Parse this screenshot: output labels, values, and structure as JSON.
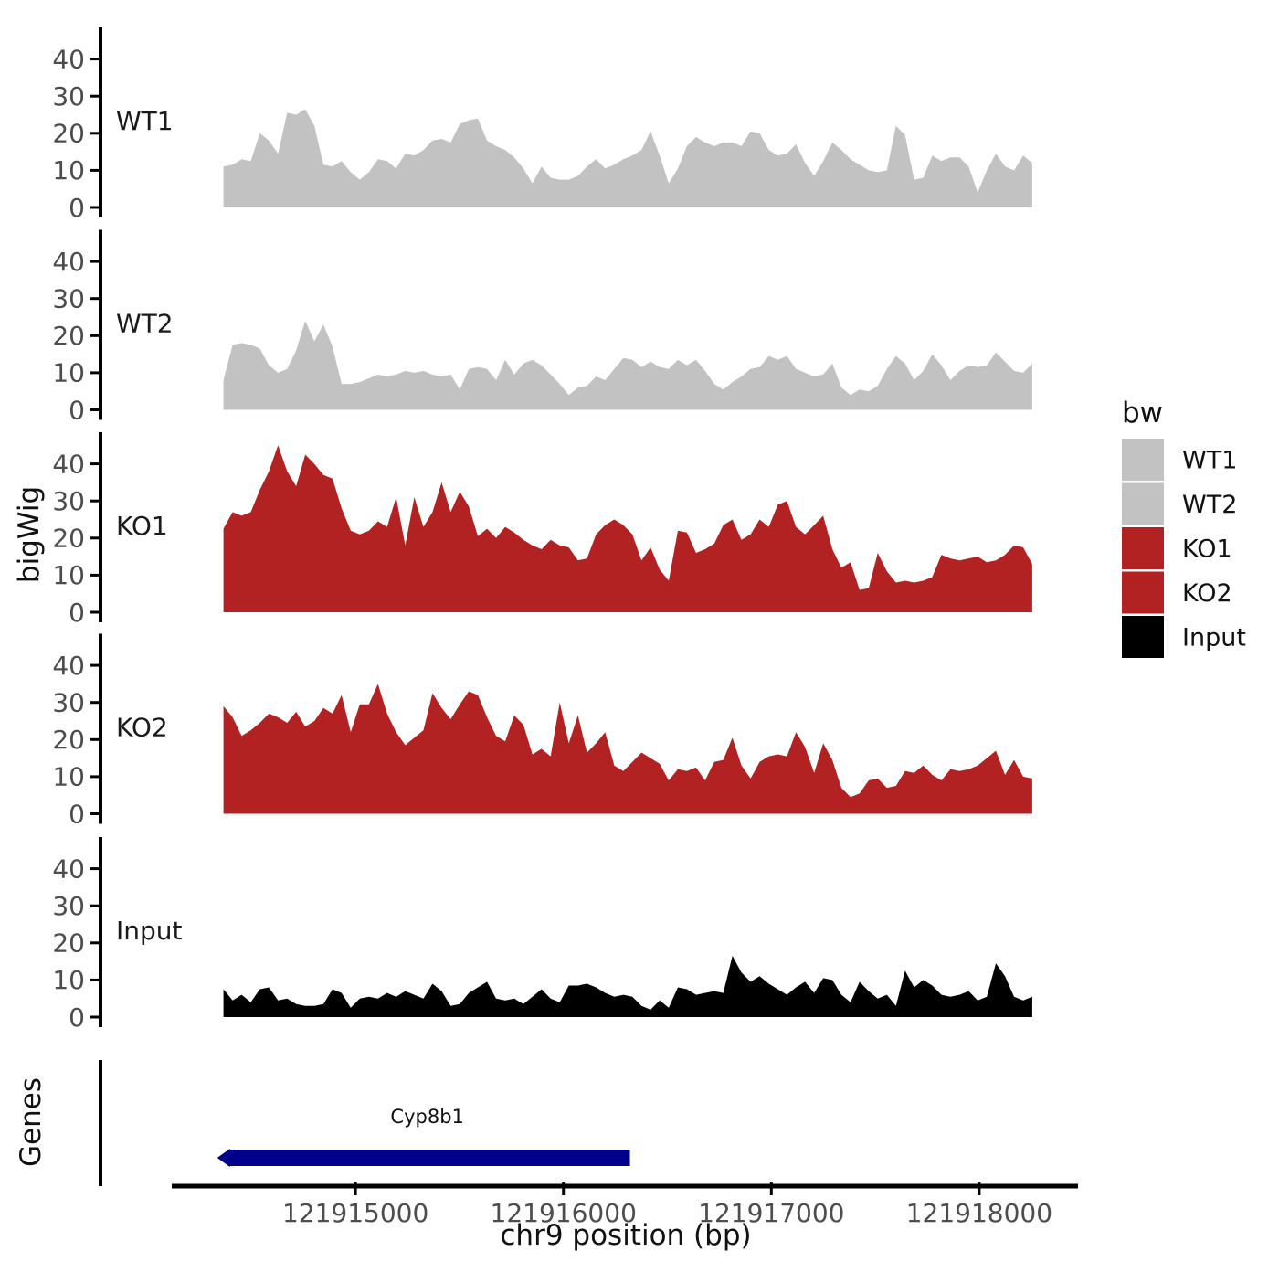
{
  "figure": {
    "y_axis_title": "bigWig",
    "genes_axis_title": "Genes",
    "x_axis_title": "chr9 position (bp)",
    "colors": {
      "wt_gray": "#C2C2C2",
      "ko_red": "#B22222",
      "input_black": "#000000",
      "gene_navy": "#00008B",
      "axis_line": "#000000",
      "tick_text": "#4d4d4d"
    },
    "legend": {
      "title": "bw",
      "items": [
        {
          "label": "WT1",
          "color": "#C2C2C2"
        },
        {
          "label": "WT2",
          "color": "#C2C2C2"
        },
        {
          "label": "KO1",
          "color": "#B22222"
        },
        {
          "label": "KO2",
          "color": "#B22222"
        },
        {
          "label": "Input",
          "color": "#000000"
        }
      ]
    }
  },
  "chart_data": {
    "type": "area",
    "title": "",
    "xlabel": "chr9 position (bp)",
    "ylabel": "bigWig",
    "grid": false,
    "legend_position": "right",
    "x_range": [
      121914125,
      121918475
    ],
    "x_ticks": [
      121915000,
      121916000,
      121917000,
      121918000
    ],
    "y_ticks": [
      0,
      10,
      20,
      30,
      40
    ],
    "ylim": [
      0,
      46
    ],
    "data_x_start": 121914365,
    "data_x_end": 121918255,
    "series": [
      {
        "name": "WT1",
        "color": "#C2C2C2",
        "values": [
          11,
          11.5,
          13,
          12.5,
          20,
          18,
          14.5,
          25.5,
          25,
          26.5,
          22,
          11.5,
          11,
          12.5,
          9.5,
          7.5,
          9.5,
          13,
          12.5,
          10.5,
          14.5,
          14,
          15.5,
          18,
          18.5,
          17.5,
          22.5,
          23.5,
          24,
          18,
          16.5,
          15.5,
          13.5,
          10.5,
          6.5,
          11,
          8,
          7.5,
          7.5,
          8.5,
          11,
          13,
          10.5,
          11.5,
          13,
          14,
          15.5,
          20.5,
          14,
          6.5,
          10.5,
          16.5,
          19,
          17.5,
          16.5,
          17.5,
          17.5,
          16.5,
          20.5,
          20,
          15.5,
          14,
          14.5,
          17,
          12,
          8.5,
          12.5,
          17.5,
          15.5,
          13,
          11.5,
          10,
          9.5,
          10,
          22,
          19.5,
          7.5,
          8,
          14,
          12.5,
          13.5,
          13.5,
          11,
          4,
          10,
          14.5,
          11,
          10,
          14,
          12
        ]
      },
      {
        "name": "WT2",
        "color": "#C2C2C2",
        "values": [
          8,
          17.5,
          18,
          17.5,
          16.5,
          12,
          10,
          11,
          16,
          24,
          18.5,
          23,
          17,
          7,
          7,
          7.5,
          8.5,
          9.5,
          9,
          9.5,
          10.5,
          10,
          10.5,
          9.5,
          9,
          9.5,
          5.5,
          11,
          11.5,
          11,
          8,
          13.5,
          9.5,
          12.5,
          13.5,
          12,
          9.5,
          7,
          4,
          6,
          6.5,
          9,
          8,
          11,
          14,
          13.5,
          11.5,
          13,
          11.5,
          11,
          13.5,
          12,
          13.5,
          10.5,
          7,
          5.5,
          7.5,
          9,
          11,
          11.5,
          14.5,
          13.5,
          14.5,
          11,
          10,
          9,
          9.5,
          12.5,
          6,
          4,
          5.5,
          5,
          6.5,
          11,
          14.5,
          12.5,
          8,
          10.5,
          15,
          12,
          8,
          10.5,
          12,
          11.5,
          12,
          15.5,
          13,
          10.5,
          10,
          12.5
        ]
      },
      {
        "name": "KO1",
        "color": "#B22222",
        "values": [
          22.5,
          27,
          26,
          27,
          33,
          38,
          45,
          38,
          34,
          42.5,
          40,
          37,
          36,
          28,
          22,
          21,
          22,
          24.5,
          23,
          31,
          18,
          31,
          23,
          27,
          35,
          27,
          32.5,
          28.5,
          20.5,
          22.5,
          20,
          23,
          21.5,
          19.5,
          18,
          17,
          19.5,
          18,
          17.5,
          14,
          14.5,
          21,
          23.5,
          25,
          23.5,
          21,
          14,
          17.5,
          11.5,
          8.5,
          22,
          21.5,
          16,
          17,
          18.5,
          23.5,
          25,
          19.5,
          21,
          25,
          23,
          29,
          30,
          23,
          21,
          23.5,
          26,
          17,
          12,
          13.5,
          6,
          6.5,
          16,
          11,
          8,
          8.5,
          8,
          8.5,
          9.5,
          15.5,
          14.5,
          14,
          14.5,
          15,
          13.5,
          14,
          15.5,
          18,
          17.5,
          13
        ]
      },
      {
        "name": "KO2",
        "color": "#B22222",
        "values": [
          29,
          26,
          21,
          22.5,
          24.5,
          27,
          26,
          24.5,
          27.5,
          23.5,
          25,
          28.5,
          27,
          32,
          22,
          29.5,
          29.5,
          35,
          27,
          22,
          18.5,
          20.5,
          22.5,
          32.5,
          28.5,
          25.5,
          29.5,
          33,
          32,
          26,
          21,
          19.5,
          26.5,
          24,
          16,
          17.5,
          15.5,
          30,
          19,
          26.5,
          16.5,
          19,
          22,
          13,
          11.5,
          14,
          16.5,
          15,
          13.5,
          9,
          12,
          11.5,
          12.5,
          9,
          14,
          14.5,
          20.5,
          13,
          9.5,
          14,
          15.5,
          16,
          15.5,
          22,
          18,
          11,
          19,
          14.5,
          7,
          4.5,
          5.5,
          9,
          9.5,
          7,
          7.5,
          11.5,
          11,
          13,
          10.5,
          9,
          12,
          11.5,
          12,
          13,
          15,
          17,
          10.5,
          14.5,
          10,
          9.5
        ]
      },
      {
        "name": "Input",
        "color": "#000000",
        "values": [
          7.5,
          4.5,
          6,
          4,
          7.5,
          8,
          4.5,
          5,
          3.5,
          3,
          3,
          3.5,
          7.5,
          6.5,
          2.5,
          5,
          5.5,
          5,
          6.5,
          5.5,
          7,
          6,
          5,
          9,
          7,
          3,
          3.5,
          6.5,
          8,
          9.5,
          5,
          4.5,
          5,
          3.5,
          5.5,
          7.5,
          5,
          4,
          8.5,
          8.5,
          9,
          8,
          6.5,
          5.5,
          6,
          5.5,
          3,
          2,
          4.5,
          2.5,
          8,
          7.5,
          6,
          6.5,
          7,
          6.5,
          16.5,
          12,
          9.5,
          11,
          9,
          7.5,
          6,
          8,
          9.5,
          6.5,
          10.5,
          10,
          6,
          4,
          9.5,
          7,
          5,
          6,
          3,
          12.5,
          8,
          10,
          8.5,
          6,
          5.5,
          6,
          7,
          4.5,
          5.5,
          14.5,
          11,
          5.5,
          4.5,
          5.5
        ]
      }
    ],
    "genes": [
      {
        "name": "Cyp8b1",
        "start": 121914370,
        "end": 121916320,
        "strand": "-",
        "color": "#00008B"
      }
    ]
  }
}
